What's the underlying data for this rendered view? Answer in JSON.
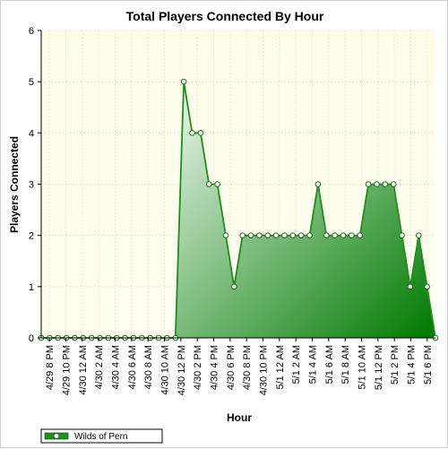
{
  "chart_data": {
    "type": "area",
    "title": "Total Players Connected By Hour",
    "xlabel": "Hour",
    "ylabel": "Players Connected",
    "ylim": [
      0,
      6
    ],
    "y_ticks": [
      "0",
      "1",
      "2",
      "3",
      "4",
      "5",
      "6"
    ],
    "grid": true,
    "legend_position": "bottom-left",
    "colors": {
      "plot_background_top": "#fefee8",
      "plot_background_bottom": "#fffff0",
      "line": "#228b22",
      "fill_light": "#e8f5e8",
      "fill_dark": "#007a00",
      "marker_fill": "#ffffff",
      "grid": "#c8c8a8"
    },
    "x_tick_labels": [
      "4/29 8 PM",
      "4/29 10 PM",
      "4/30 12 AM",
      "4/30 2 AM",
      "4/30 4 AM",
      "4/30 6 AM",
      "4/30 8 AM",
      "4/30 10 AM",
      "4/30 12 PM",
      "4/30 2 PM",
      "4/30 4 PM",
      "4/30 6 PM",
      "4/30 8 PM",
      "4/30 10 PM",
      "5/1 12 AM",
      "5/1 2 AM",
      "5/1 4 AM",
      "5/1 6 AM",
      "5/1 8 AM",
      "5/1 10 AM",
      "5/1 12 PM",
      "5/1 2 PM",
      "5/1 4 PM",
      "5/1 6 PM"
    ],
    "series": [
      {
        "name": "Wilds of Pern",
        "values": [
          0,
          0,
          0,
          0,
          0,
          0,
          0,
          0,
          0,
          0,
          0,
          0,
          0,
          0,
          0,
          0,
          0,
          5,
          4,
          4,
          3,
          3,
          2,
          1,
          2,
          2,
          2,
          2,
          2,
          2,
          2,
          2,
          2,
          3,
          2,
          2,
          2,
          2,
          2,
          3,
          3,
          3,
          3,
          2,
          1,
          2,
          1,
          0
        ]
      }
    ]
  }
}
